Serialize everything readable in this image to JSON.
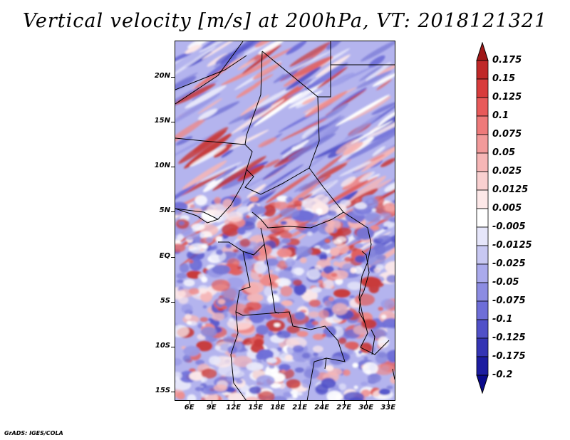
{
  "title": "Vertical velocity [m/s] at 200hPa, VT: 2018121321",
  "footer": "GrADS: IGES/COLA",
  "lat_labels": [
    "20N",
    "15N",
    "10N",
    "5N",
    "EQ",
    "5S",
    "10S",
    "15S"
  ],
  "lon_labels": [
    "6E",
    "9E",
    "12E",
    "15E",
    "18E",
    "21E",
    "24E",
    "27E",
    "30E",
    "33E"
  ],
  "colorbar": {
    "labels": [
      "0.175",
      "0.15",
      "0.125",
      "0.1",
      "0.075",
      "0.05",
      "0.025",
      "0.0125",
      "0.005",
      "-0.005",
      "-0.0125",
      "-0.025",
      "-0.05",
      "-0.075",
      "-0.1",
      "-0.125",
      "-0.175",
      "-0.2"
    ],
    "colors": [
      "#a01818",
      "#c02828",
      "#d83c3c",
      "#e85a5a",
      "#ee7a7a",
      "#f29a9a",
      "#f6b6b6",
      "#f9d0d0",
      "#fde8e8",
      "#ffffff",
      "#e6e6fa",
      "#c8c8f2",
      "#aaaaec",
      "#8c8ce2",
      "#6e6ed8",
      "#5050c8",
      "#3434b4",
      "#1c1ca0",
      "#0a0a8c"
    ]
  },
  "chart_data": {
    "type": "heatmap",
    "title": "Vertical velocity [m/s] at 200hPa, VT: 2018121321",
    "variable": "Vertical velocity",
    "units": "m/s",
    "level": "200hPa",
    "valid_time": "2018121321",
    "lon_range": [
      4,
      34
    ],
    "lat_range": [
      -16,
      24
    ],
    "xticks": [
      "6E",
      "9E",
      "12E",
      "15E",
      "18E",
      "21E",
      "24E",
      "27E",
      "30E",
      "33E"
    ],
    "yticks": [
      "20N",
      "15N",
      "10N",
      "5N",
      "EQ",
      "5S",
      "10S",
      "15S"
    ],
    "contour_levels": [
      -0.2,
      -0.175,
      -0.125,
      -0.1,
      -0.075,
      -0.05,
      -0.025,
      -0.0125,
      -0.005,
      0.005,
      0.0125,
      0.025,
      0.05,
      0.075,
      0.1,
      0.125,
      0.15,
      0.175
    ]
  }
}
